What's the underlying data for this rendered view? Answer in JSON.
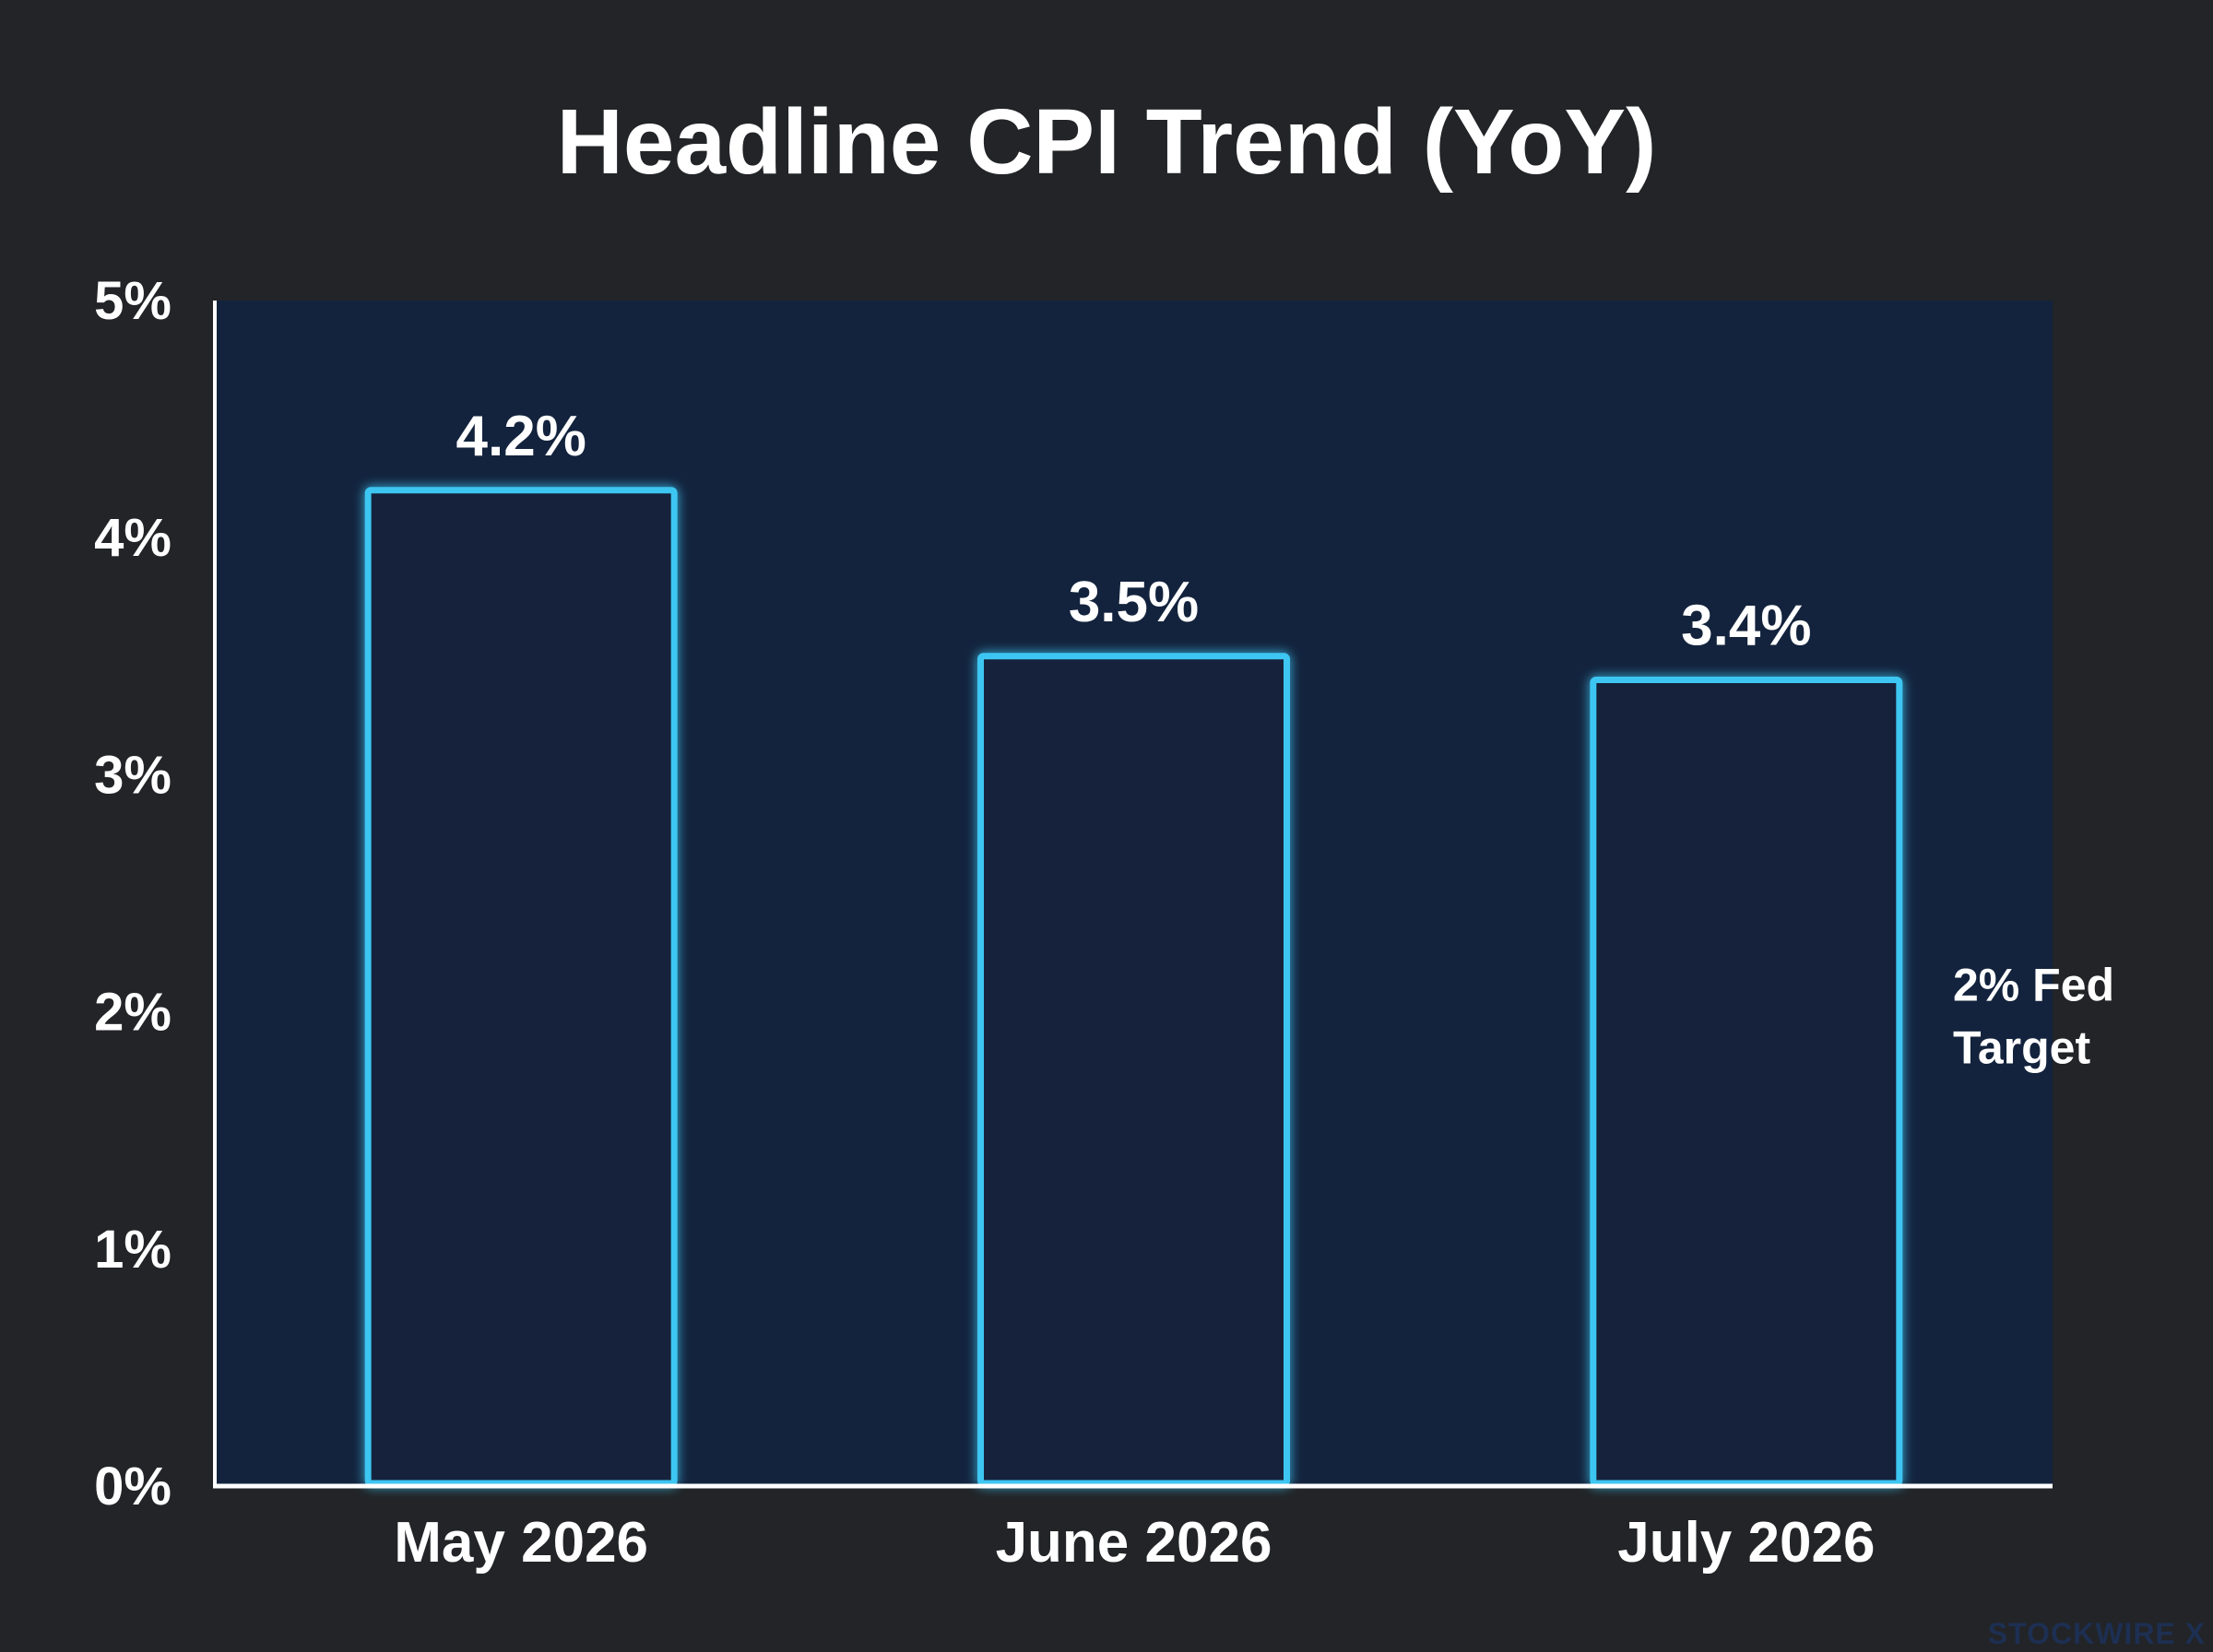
{
  "chart_data": {
    "type": "bar",
    "title": "Headline CPI Trend (YoY)",
    "categories": [
      "May 2026",
      "June 2026",
      "July 2026"
    ],
    "values": [
      4.2,
      3.5,
      3.4
    ],
    "value_labels": [
      "4.2%",
      "3.5%",
      "3.4%"
    ],
    "ylim": [
      0,
      5
    ],
    "y_ticks": [
      0,
      1,
      2,
      3,
      4,
      5
    ],
    "y_tick_labels": [
      "0%",
      "1%",
      "2%",
      "3%",
      "4%",
      "5%"
    ],
    "xlabel": "",
    "ylabel": "",
    "grid": false,
    "reference_line": {
      "value": 2,
      "label_lines": [
        "2% Fed",
        "Target"
      ]
    },
    "colors": {
      "background": "#222427",
      "plot_background": "#13233d",
      "bar_outline": "#3ec6f2",
      "bar_fill": "#12223b",
      "axis": "#ffffff",
      "reference_line": "#ffffff"
    }
  },
  "watermark": "STOCKWIRE X"
}
